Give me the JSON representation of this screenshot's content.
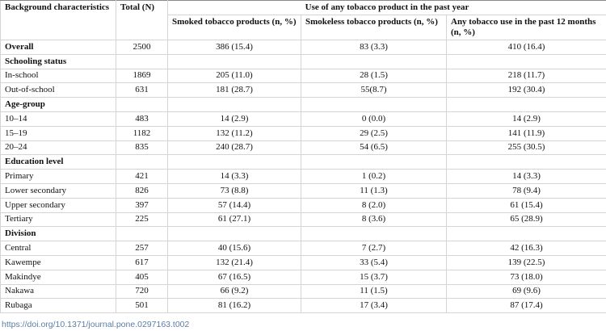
{
  "table": {
    "header": {
      "characteristics": "Background characteristics",
      "total": "Total (N)",
      "group": "Use of any tobacco product in the past year",
      "sub": [
        "Smoked tobacco products (n, %)",
        "Smokeless tobacco products (n, %)",
        "Any tobacco use in the past 12 months (n, %)"
      ]
    },
    "rows": [
      [
        "Overall",
        "2500",
        "386 (15.4)",
        "83 (3.3)",
        "410 (16.4)"
      ],
      [
        "Schooling status"
      ],
      [
        "In-school",
        "1869",
        "205 (11.0)",
        "28 (1.5)",
        "218 (11.7)"
      ],
      [
        "Out-of-school",
        "631",
        "181 (28.7)",
        "55(8.7)",
        "192 (30.4)"
      ],
      [
        "Age-group"
      ],
      [
        "10–14",
        "483",
        "14 (2.9)",
        "0 (0.0)",
        "14 (2.9)"
      ],
      [
        "15–19",
        "1182",
        "132 (11.2)",
        "29 (2.5)",
        "141 (11.9)"
      ],
      [
        "20–24",
        "835",
        "240 (28.7)",
        "54 (6.5)",
        "255 (30.5)"
      ],
      [
        "Education level"
      ],
      [
        "Primary",
        "421",
        "14 (3.3)",
        "1 (0.2)",
        "14 (3.3)"
      ],
      [
        "Lower secondary",
        "826",
        "73 (8.8)",
        "11 (1.3)",
        "78 (9.4)"
      ],
      [
        "Upper secondary",
        "397",
        "57 (14.4)",
        "8 (2.0)",
        "61 (15.4)"
      ],
      [
        "Tertiary",
        "225",
        "61 (27.1)",
        "8 (3.6)",
        "65 (28.9)"
      ],
      [
        "Division"
      ],
      [
        "Central",
        "257",
        "40 (15.6)",
        "7 (2.7)",
        "42 (16.3)"
      ],
      [
        "Kawempe",
        "617",
        "132 (21.4)",
        "33 (5.4)",
        "139 (22.5)"
      ],
      [
        "Makindye",
        "405",
        "67 (16.5)",
        "15 (3.7)",
        "73 (18.0)"
      ],
      [
        "Nakawa",
        "720",
        "66 (9.2)",
        "11 (1.5)",
        "69 (9.6)"
      ],
      [
        "Rubaga",
        "501",
        "81 (16.2)",
        "17 (3.4)",
        "87 (17.4)"
      ]
    ]
  },
  "footer": {
    "doi": "https://doi.org/10.1371/journal.pone.0297163.t002"
  }
}
